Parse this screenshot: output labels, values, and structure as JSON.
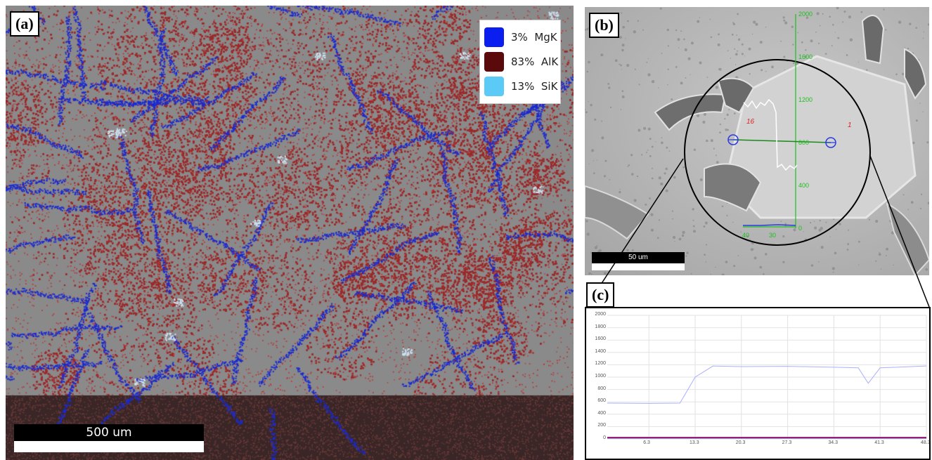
{
  "panel_a": {
    "label": "(a)",
    "legend": [
      {
        "pct": "3%",
        "element": "MgK",
        "color": "#0a1ef0"
      },
      {
        "pct": "83%",
        "element": "AlK",
        "color": "#5a0a0a"
      },
      {
        "pct": "13%",
        "element": "SiK",
        "color": "#5ccaf6"
      }
    ],
    "scale_bar": "500 um",
    "colors": {
      "al": "#a52a2a",
      "mg": "#1a2ad0",
      "base": "#8a8a8a"
    }
  },
  "panel_b": {
    "label": "(b)",
    "scale_bar": "50 um",
    "profile_axis_ticks": [
      "2000",
      "1600",
      "1200",
      "800",
      "400",
      "0"
    ],
    "profile_x_ticks": [
      "40",
      "30"
    ],
    "region_labels": [
      "16",
      "1"
    ]
  },
  "panel_c": {
    "label": "(c)",
    "y_ticks": [
      "2000",
      "1800",
      "1600",
      "1400",
      "1200",
      "1000",
      "800",
      "600",
      "400",
      "200",
      "0"
    ],
    "x_ticks": [
      "6.3",
      "13.3",
      "20.3",
      "27.3",
      "34.3",
      "41.3",
      "48.3"
    ]
  },
  "chart_data": {
    "type": "line",
    "ylim": [
      0,
      2000
    ],
    "x_ticks": [
      6.3,
      13.3,
      20.3,
      27.3,
      34.3,
      41.3,
      48.3
    ],
    "series": [
      {
        "color": "#aab0ff",
        "x": [
          0,
          6.3,
          11,
          13.3,
          16,
          20.3,
          27.3,
          34.3,
          38,
          39.5,
          41.3,
          48.3
        ],
        "y": [
          580,
          575,
          580,
          1000,
          1180,
          1170,
          1175,
          1160,
          1150,
          900,
          1150,
          1180
        ]
      },
      {
        "color": "#2020c0",
        "x": [
          0,
          48.3
        ],
        "y": [
          15,
          15
        ]
      },
      {
        "color": "#c02060",
        "x": [
          0,
          48.3
        ],
        "y": [
          25,
          25
        ]
      }
    ]
  }
}
